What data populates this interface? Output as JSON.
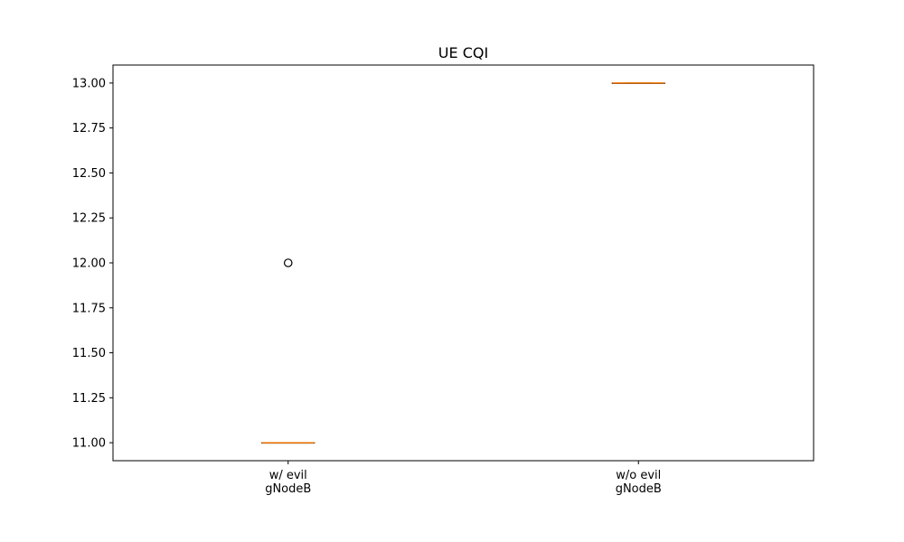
{
  "chart_data": {
    "type": "box",
    "title": "UE CQI",
    "xlabel": "",
    "ylabel": "",
    "ylim": [
      10.9,
      13.1
    ],
    "yticks": [
      11.0,
      11.25,
      11.5,
      11.75,
      12.0,
      12.25,
      12.5,
      12.75,
      13.0
    ],
    "ytick_labels": [
      "11.00",
      "11.25",
      "11.50",
      "11.75",
      "12.00",
      "12.25",
      "12.50",
      "12.75",
      "13.00"
    ],
    "grid": false,
    "categories": [
      [
        "w/ evil",
        "gNodeB"
      ],
      [
        "w/o evil",
        "gNodeB"
      ]
    ],
    "boxes": [
      {
        "q1": 11,
        "median": 11,
        "q3": 11,
        "whisker_low": 11,
        "whisker_high": 11,
        "outliers": [
          12
        ]
      },
      {
        "q1": 13,
        "median": 13,
        "q3": 13,
        "whisker_low": 13,
        "whisker_high": 13,
        "outliers": []
      }
    ],
    "colors": {
      "median": "#ff7f0e",
      "box": "#000000",
      "outlier": "#000000",
      "axes": "#000000"
    }
  }
}
